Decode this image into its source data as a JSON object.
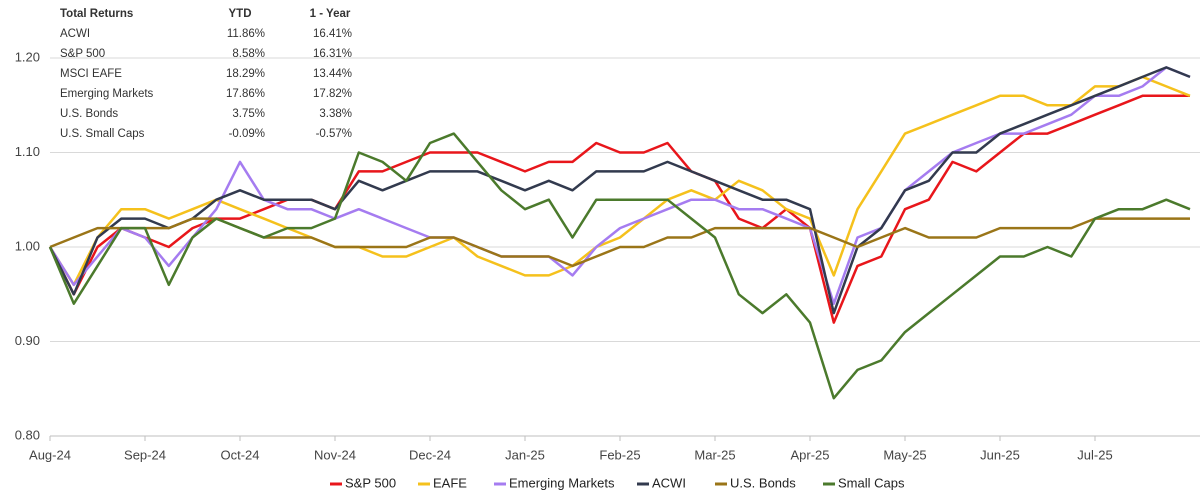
{
  "chart_data": {
    "type": "line",
    "categories": [
      "Aug-24",
      null,
      null,
      null,
      "Sep-24",
      null,
      null,
      null,
      "Oct-24",
      null,
      null,
      null,
      "Nov-24",
      null,
      null,
      null,
      "Dec-24",
      null,
      null,
      null,
      "Jan-25",
      null,
      null,
      null,
      "Feb-25",
      null,
      null,
      null,
      "Mar-25",
      null,
      null,
      null,
      "Apr-25",
      null,
      null,
      null,
      "May-25",
      null,
      null,
      null,
      "Jun-25",
      null,
      null,
      null,
      "Jul-25",
      null,
      null,
      null,
      null
    ],
    "series": [
      {
        "name": "S&P 500",
        "color": "#e8161b",
        "values": [
          1.0,
          0.95,
          1.0,
          1.02,
          1.01,
          1.0,
          1.02,
          1.03,
          1.03,
          1.04,
          1.05,
          1.05,
          1.04,
          1.08,
          1.08,
          1.09,
          1.1,
          1.1,
          1.1,
          1.09,
          1.08,
          1.09,
          1.09,
          1.11,
          1.1,
          1.1,
          1.11,
          1.08,
          1.07,
          1.03,
          1.02,
          1.04,
          1.02,
          0.92,
          0.98,
          0.99,
          1.04,
          1.05,
          1.09,
          1.08,
          1.1,
          1.12,
          1.12,
          1.13,
          1.14,
          1.15,
          1.16,
          1.16,
          1.16
        ]
      },
      {
        "name": "EAFE",
        "color": "#f5c11c",
        "values": [
          1.0,
          0.96,
          1.01,
          1.04,
          1.04,
          1.03,
          1.04,
          1.05,
          1.04,
          1.03,
          1.02,
          1.01,
          1.0,
          1.0,
          0.99,
          0.99,
          1.0,
          1.01,
          0.99,
          0.98,
          0.97,
          0.97,
          0.98,
          1.0,
          1.01,
          1.03,
          1.05,
          1.06,
          1.05,
          1.07,
          1.06,
          1.04,
          1.03,
          0.97,
          1.04,
          1.08,
          1.12,
          1.13,
          1.14,
          1.15,
          1.16,
          1.16,
          1.15,
          1.15,
          1.17,
          1.17,
          1.18,
          1.17,
          1.16
        ]
      },
      {
        "name": "Emerging Markets",
        "color": "#a57cf0",
        "values": [
          1.0,
          0.96,
          0.99,
          1.02,
          1.01,
          0.98,
          1.01,
          1.04,
          1.09,
          1.05,
          1.04,
          1.04,
          1.03,
          1.04,
          1.03,
          1.02,
          1.01,
          1.01,
          1.0,
          0.99,
          0.99,
          0.99,
          0.97,
          1.0,
          1.02,
          1.03,
          1.04,
          1.05,
          1.05,
          1.04,
          1.04,
          1.03,
          1.02,
          0.94,
          1.01,
          1.02,
          1.06,
          1.08,
          1.1,
          1.11,
          1.12,
          1.12,
          1.13,
          1.14,
          1.16,
          1.16,
          1.17,
          1.19,
          1.18
        ]
      },
      {
        "name": "ACWI",
        "color": "#323a4e",
        "values": [
          1.0,
          0.95,
          1.01,
          1.03,
          1.03,
          1.02,
          1.03,
          1.05,
          1.06,
          1.05,
          1.05,
          1.05,
          1.04,
          1.07,
          1.06,
          1.07,
          1.08,
          1.08,
          1.08,
          1.07,
          1.06,
          1.07,
          1.06,
          1.08,
          1.08,
          1.08,
          1.09,
          1.08,
          1.07,
          1.06,
          1.05,
          1.05,
          1.04,
          0.93,
          1.0,
          1.02,
          1.06,
          1.07,
          1.1,
          1.1,
          1.12,
          1.13,
          1.14,
          1.15,
          1.16,
          1.17,
          1.18,
          1.19,
          1.18
        ]
      },
      {
        "name": "U.S. Bonds",
        "color": "#9a7518",
        "values": [
          1.0,
          1.01,
          1.02,
          1.02,
          1.02,
          1.02,
          1.03,
          1.03,
          1.02,
          1.01,
          1.01,
          1.01,
          1.0,
          1.0,
          1.0,
          1.0,
          1.01,
          1.01,
          1.0,
          0.99,
          0.99,
          0.99,
          0.98,
          0.99,
          1.0,
          1.0,
          1.01,
          1.01,
          1.02,
          1.02,
          1.02,
          1.02,
          1.02,
          1.01,
          1.0,
          1.01,
          1.02,
          1.01,
          1.01,
          1.01,
          1.02,
          1.02,
          1.02,
          1.02,
          1.03,
          1.03,
          1.03,
          1.03,
          1.03
        ]
      },
      {
        "name": "Small Caps",
        "color": "#4b7a2c",
        "values": [
          1.0,
          0.94,
          0.98,
          1.02,
          1.02,
          0.96,
          1.01,
          1.03,
          1.02,
          1.01,
          1.02,
          1.02,
          1.03,
          1.1,
          1.09,
          1.07,
          1.11,
          1.12,
          1.09,
          1.06,
          1.04,
          1.05,
          1.01,
          1.05,
          1.05,
          1.05,
          1.05,
          1.03,
          1.01,
          0.95,
          0.93,
          0.95,
          0.92,
          0.84,
          0.87,
          0.88,
          0.91,
          0.93,
          0.95,
          0.97,
          0.99,
          0.99,
          1.0,
          0.99,
          1.03,
          1.04,
          1.04,
          1.05,
          1.04
        ]
      }
    ],
    "ylim": [
      0.8,
      1.2
    ],
    "yticks": [
      {
        "value": 0.8,
        "label": "0.80"
      },
      {
        "value": 0.9,
        "label": "0.90"
      },
      {
        "value": 1.0,
        "label": "1.00"
      },
      {
        "value": 1.1,
        "label": "1.10"
      },
      {
        "value": 1.2,
        "label": "1.20"
      }
    ],
    "grid": true,
    "legend": "bottom",
    "returns_table": {
      "header": [
        "Total Returns",
        "YTD",
        "1 - Year"
      ],
      "rows": [
        [
          "ACWI",
          "11.86%",
          "16.41%"
        ],
        [
          "S&P 500",
          "8.58%",
          "16.31%"
        ],
        [
          "MSCI EAFE",
          "18.29%",
          "13.44%"
        ],
        [
          "Emerging Markets",
          "17.86%",
          "17.82%"
        ],
        [
          "U.S. Bonds",
          "3.75%",
          "3.38%"
        ],
        [
          "U.S. Small Caps",
          "-0.09%",
          "-0.57%"
        ]
      ]
    }
  }
}
